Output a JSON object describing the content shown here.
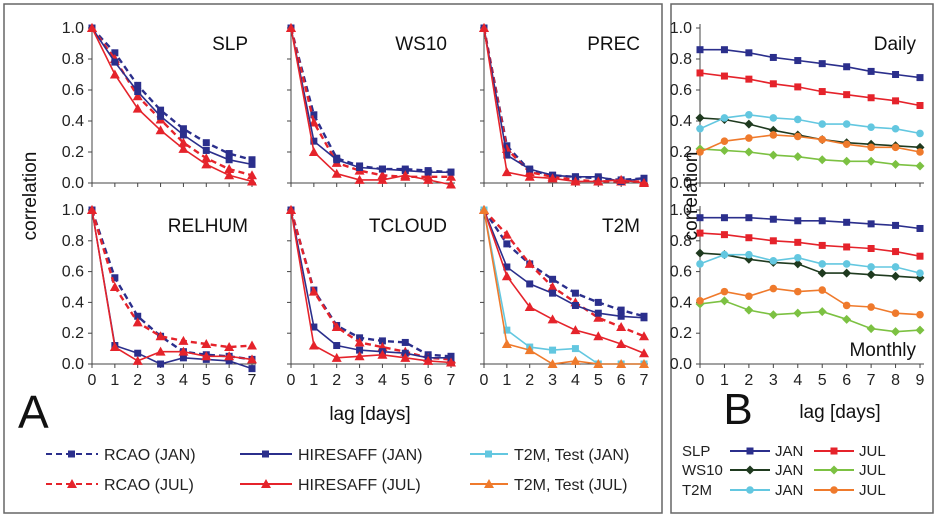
{
  "colors": {
    "navy": "#2b2f8c",
    "red": "#e5232b",
    "dark_green": "#1f3a1f",
    "light_green": "#7cc142",
    "cyan": "#63c7e0",
    "orange": "#ef7a2c"
  },
  "panel_a": {
    "label": "A",
    "ylabel": "correlation",
    "xlabel": "lag [days]",
    "yticks": [
      "0.0",
      "0.2",
      "0.4",
      "0.6",
      "0.8",
      "1.0"
    ],
    "xticks": [
      "0",
      "1",
      "2",
      "3",
      "4",
      "5",
      "6",
      "7"
    ]
  },
  "panel_b": {
    "label": "B",
    "ylabel": "correlation",
    "xlabel": "lag [days]",
    "yticks": [
      "0.0",
      "0.2",
      "0.4",
      "0.6",
      "0.8",
      "1.0"
    ],
    "xticks": [
      "0",
      "1",
      "2",
      "3",
      "4",
      "5",
      "6",
      "7",
      "8",
      "9"
    ]
  },
  "legend_a": [
    {
      "label": "RCAO (JAN)",
      "color": "#2b2f8c",
      "marker": "square",
      "dashed": true
    },
    {
      "label": "HIRESAFF (JAN)",
      "color": "#2b2f8c",
      "marker": "square",
      "dashed": false
    },
    {
      "label": "T2M, Test (JAN)",
      "color": "#63c7e0",
      "marker": "square",
      "dashed": false
    },
    {
      "label": "RCAO (JUL)",
      "color": "#e5232b",
      "marker": "triangle",
      "dashed": true
    },
    {
      "label": "HIRESAFF (JUL)",
      "color": "#e5232b",
      "marker": "triangle",
      "dashed": false
    },
    {
      "label": "T2M, Test (JUL)",
      "color": "#ef7a2c",
      "marker": "triangle",
      "dashed": false
    }
  ],
  "legend_b": {
    "rows": [
      {
        "var": "SLP",
        "jan_label": "JAN",
        "jul_label": "JUL",
        "jan_color": "#2b2f8c",
        "jul_color": "#e5232b",
        "marker": "square"
      },
      {
        "var": "WS10",
        "jan_label": "JAN",
        "jul_label": "JUL",
        "jan_color": "#1f3a1f",
        "jul_color": "#7cc142",
        "marker": "diamond"
      },
      {
        "var": "T2M",
        "jan_label": "JAN",
        "jul_label": "JUL",
        "jan_color": "#63c7e0",
        "jul_color": "#ef7a2c",
        "marker": "circle"
      }
    ]
  },
  "chart_data": [
    {
      "type": "line",
      "title": "SLP",
      "x": [
        0,
        1,
        2,
        3,
        4,
        5,
        6,
        7
      ],
      "ylim": [
        0,
        1
      ],
      "series": [
        {
          "name": "RCAO (JAN)",
          "color": "#2b2f8c",
          "marker": "square",
          "dashed": true,
          "values": [
            1.0,
            0.84,
            0.63,
            0.47,
            0.35,
            0.26,
            0.19,
            0.15
          ]
        },
        {
          "name": "RCAO (JUL)",
          "color": "#e5232b",
          "marker": "triangle",
          "dashed": true,
          "values": [
            1.0,
            0.8,
            0.56,
            0.41,
            0.26,
            0.16,
            0.09,
            0.05
          ]
        },
        {
          "name": "HIRESAFF (JAN)",
          "color": "#2b2f8c",
          "marker": "square",
          "dashed": false,
          "values": [
            1.0,
            0.78,
            0.59,
            0.43,
            0.31,
            0.21,
            0.15,
            0.12
          ]
        },
        {
          "name": "HIRESAFF (JUL)",
          "color": "#e5232b",
          "marker": "triangle",
          "dashed": false,
          "values": [
            1.0,
            0.7,
            0.48,
            0.34,
            0.22,
            0.12,
            0.05,
            0.01
          ]
        }
      ]
    },
    {
      "type": "line",
      "title": "WS10",
      "x": [
        0,
        1,
        2,
        3,
        4,
        5,
        6,
        7
      ],
      "ylim": [
        0,
        1
      ],
      "series": [
        {
          "name": "RCAO (JAN)",
          "color": "#2b2f8c",
          "marker": "square",
          "dashed": true,
          "values": [
            1.0,
            0.44,
            0.16,
            0.11,
            0.09,
            0.09,
            0.08,
            0.07
          ]
        },
        {
          "name": "RCAO (JUL)",
          "color": "#e5232b",
          "marker": "triangle",
          "dashed": true,
          "values": [
            1.0,
            0.39,
            0.13,
            0.08,
            0.05,
            0.04,
            0.04,
            0.04
          ]
        },
        {
          "name": "HIRESAFF (JAN)",
          "color": "#2b2f8c",
          "marker": "square",
          "dashed": false,
          "values": [
            1.0,
            0.27,
            0.15,
            0.1,
            0.09,
            0.08,
            0.07,
            0.07
          ]
        },
        {
          "name": "HIRESAFF (JUL)",
          "color": "#e5232b",
          "marker": "triangle",
          "dashed": false,
          "values": [
            1.0,
            0.2,
            0.06,
            0.02,
            0.02,
            0.05,
            0.02,
            -0.01
          ]
        }
      ]
    },
    {
      "type": "line",
      "title": "PREC",
      "x": [
        0,
        1,
        2,
        3,
        4,
        5,
        6,
        7
      ],
      "ylim": [
        0,
        1
      ],
      "series": [
        {
          "name": "RCAO (JAN)",
          "color": "#2b2f8c",
          "marker": "square",
          "dashed": true,
          "values": [
            1.0,
            0.24,
            0.08,
            0.05,
            0.04,
            0.03,
            0.02,
            0.03
          ]
        },
        {
          "name": "RCAO (JUL)",
          "color": "#e5232b",
          "marker": "triangle",
          "dashed": true,
          "values": [
            1.0,
            0.22,
            0.07,
            0.04,
            0.02,
            0.01,
            0.01,
            0.01
          ]
        },
        {
          "name": "HIRESAFF (JAN)",
          "color": "#2b2f8c",
          "marker": "square",
          "dashed": false,
          "values": [
            1.0,
            0.18,
            0.09,
            0.05,
            0.04,
            0.04,
            0.01,
            0.03
          ]
        },
        {
          "name": "HIRESAFF (JUL)",
          "color": "#e5232b",
          "marker": "triangle",
          "dashed": false,
          "values": [
            1.0,
            0.07,
            0.04,
            0.03,
            0.01,
            0.01,
            0.02,
            0.0
          ]
        }
      ]
    },
    {
      "type": "line",
      "title": "RELHUM",
      "x": [
        0,
        1,
        2,
        3,
        4,
        5,
        6,
        7
      ],
      "ylim": [
        0,
        1
      ],
      "series": [
        {
          "name": "RCAO (JAN)",
          "color": "#2b2f8c",
          "marker": "square",
          "dashed": true,
          "values": [
            1.0,
            0.56,
            0.31,
            0.18,
            0.08,
            0.06,
            0.05,
            0.03
          ]
        },
        {
          "name": "RCAO (JUL)",
          "color": "#e5232b",
          "marker": "triangle",
          "dashed": true,
          "values": [
            1.0,
            0.5,
            0.27,
            0.18,
            0.15,
            0.13,
            0.11,
            0.12
          ]
        },
        {
          "name": "HIRESAFF (JAN)",
          "color": "#2b2f8c",
          "marker": "square",
          "dashed": false,
          "values": [
            1.0,
            0.12,
            0.07,
            0.0,
            0.04,
            0.03,
            0.02,
            -0.03
          ]
        },
        {
          "name": "HIRESAFF (JUL)",
          "color": "#e5232b",
          "marker": "triangle",
          "dashed": false,
          "values": [
            1.0,
            0.11,
            0.02,
            0.08,
            0.08,
            0.05,
            0.05,
            0.03
          ]
        }
      ]
    },
    {
      "type": "line",
      "title": "TCLOUD",
      "x": [
        0,
        1,
        2,
        3,
        4,
        5,
        6,
        7
      ],
      "ylim": [
        0,
        1
      ],
      "series": [
        {
          "name": "RCAO (JAN)",
          "color": "#2b2f8c",
          "marker": "square",
          "dashed": true,
          "values": [
            1.0,
            0.48,
            0.25,
            0.17,
            0.15,
            0.14,
            0.06,
            0.05
          ]
        },
        {
          "name": "RCAO (JUL)",
          "color": "#e5232b",
          "marker": "triangle",
          "dashed": true,
          "values": [
            1.0,
            0.47,
            0.24,
            0.14,
            0.11,
            0.08,
            0.04,
            0.03
          ]
        },
        {
          "name": "HIRESAFF (JAN)",
          "color": "#2b2f8c",
          "marker": "square",
          "dashed": false,
          "values": [
            1.0,
            0.24,
            0.12,
            0.09,
            0.08,
            0.07,
            0.04,
            0.04
          ]
        },
        {
          "name": "HIRESAFF (JUL)",
          "color": "#e5232b",
          "marker": "triangle",
          "dashed": false,
          "values": [
            1.0,
            0.12,
            0.04,
            0.05,
            0.06,
            0.04,
            0.02,
            0.01
          ]
        }
      ]
    },
    {
      "type": "line",
      "title": "T2M",
      "x": [
        0,
        1,
        2,
        3,
        4,
        5,
        6,
        7
      ],
      "ylim": [
        0,
        1
      ],
      "series": [
        {
          "name": "RCAO (JAN)",
          "color": "#2b2f8c",
          "marker": "square",
          "dashed": true,
          "values": [
            1.0,
            0.78,
            0.65,
            0.55,
            0.46,
            0.4,
            0.35,
            0.31
          ]
        },
        {
          "name": "RCAO (JUL)",
          "color": "#e5232b",
          "marker": "triangle",
          "dashed": true,
          "values": [
            1.0,
            0.84,
            0.65,
            0.5,
            0.4,
            0.3,
            0.24,
            0.18
          ]
        },
        {
          "name": "HIRESAFF (JAN)",
          "color": "#2b2f8c",
          "marker": "square",
          "dashed": false,
          "values": [
            1.0,
            0.63,
            0.52,
            0.46,
            0.38,
            0.33,
            0.31,
            0.3
          ]
        },
        {
          "name": "HIRESAFF (JUL)",
          "color": "#e5232b",
          "marker": "triangle",
          "dashed": false,
          "values": [
            1.0,
            0.57,
            0.37,
            0.29,
            0.22,
            0.18,
            0.13,
            0.07
          ]
        },
        {
          "name": "T2M, Test (JAN)",
          "color": "#63c7e0",
          "marker": "square",
          "dashed": false,
          "values": [
            1.0,
            0.22,
            0.11,
            0.09,
            0.1,
            0.0,
            0.0,
            0.0
          ]
        },
        {
          "name": "T2M, Test (JUL)",
          "color": "#ef7a2c",
          "marker": "triangle",
          "dashed": false,
          "values": [
            1.0,
            0.13,
            0.09,
            0.0,
            0.02,
            0.0,
            0.0,
            0.0
          ]
        }
      ]
    },
    {
      "type": "line",
      "title": "Daily",
      "x": [
        0,
        1,
        2,
        3,
        4,
        5,
        6,
        7,
        8,
        9
      ],
      "ylim": [
        0,
        1
      ],
      "series": [
        {
          "name": "SLP JAN",
          "color": "#2b2f8c",
          "marker": "square",
          "values": [
            0.86,
            0.86,
            0.84,
            0.81,
            0.79,
            0.77,
            0.75,
            0.72,
            0.7,
            0.68
          ]
        },
        {
          "name": "SLP JUL",
          "color": "#e5232b",
          "marker": "square",
          "values": [
            0.71,
            0.69,
            0.67,
            0.64,
            0.62,
            0.59,
            0.57,
            0.55,
            0.53,
            0.5
          ]
        },
        {
          "name": "WS10 JAN",
          "color": "#1f3a1f",
          "marker": "diamond",
          "values": [
            0.42,
            0.41,
            0.38,
            0.34,
            0.31,
            0.28,
            0.26,
            0.25,
            0.24,
            0.23
          ]
        },
        {
          "name": "WS10 JUL",
          "color": "#7cc142",
          "marker": "diamond",
          "values": [
            0.22,
            0.21,
            0.2,
            0.18,
            0.17,
            0.15,
            0.14,
            0.14,
            0.12,
            0.11
          ]
        },
        {
          "name": "T2M JAN",
          "color": "#63c7e0",
          "marker": "circle",
          "values": [
            0.35,
            0.42,
            0.44,
            0.42,
            0.41,
            0.38,
            0.38,
            0.36,
            0.35,
            0.32
          ]
        },
        {
          "name": "T2M JUL",
          "color": "#ef7a2c",
          "marker": "circle",
          "values": [
            0.2,
            0.27,
            0.29,
            0.31,
            0.3,
            0.28,
            0.25,
            0.23,
            0.23,
            0.2
          ]
        }
      ]
    },
    {
      "type": "line",
      "title": "Monthly",
      "x": [
        0,
        1,
        2,
        3,
        4,
        5,
        6,
        7,
        8,
        9
      ],
      "ylim": [
        0,
        1
      ],
      "series": [
        {
          "name": "SLP JAN",
          "color": "#2b2f8c",
          "marker": "square",
          "values": [
            0.95,
            0.95,
            0.95,
            0.94,
            0.93,
            0.93,
            0.92,
            0.91,
            0.9,
            0.88
          ]
        },
        {
          "name": "SLP JUL",
          "color": "#e5232b",
          "marker": "square",
          "values": [
            0.85,
            0.84,
            0.82,
            0.8,
            0.79,
            0.77,
            0.76,
            0.75,
            0.73,
            0.7
          ]
        },
        {
          "name": "WS10 JAN",
          "color": "#1f3a1f",
          "marker": "diamond",
          "values": [
            0.72,
            0.71,
            0.68,
            0.66,
            0.65,
            0.59,
            0.59,
            0.58,
            0.57,
            0.56
          ]
        },
        {
          "name": "WS10 JUL",
          "color": "#7cc142",
          "marker": "diamond",
          "values": [
            0.39,
            0.41,
            0.35,
            0.32,
            0.33,
            0.34,
            0.29,
            0.23,
            0.21,
            0.22
          ]
        },
        {
          "name": "T2M JAN",
          "color": "#63c7e0",
          "marker": "circle",
          "values": [
            0.65,
            0.71,
            0.71,
            0.67,
            0.69,
            0.65,
            0.65,
            0.63,
            0.63,
            0.59
          ]
        },
        {
          "name": "T2M JUL",
          "color": "#ef7a2c",
          "marker": "circle",
          "values": [
            0.41,
            0.47,
            0.44,
            0.49,
            0.47,
            0.48,
            0.38,
            0.37,
            0.33,
            0.32
          ]
        }
      ]
    }
  ]
}
